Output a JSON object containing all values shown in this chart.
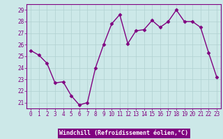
{
  "x": [
    0,
    1,
    2,
    3,
    4,
    5,
    6,
    7,
    8,
    9,
    10,
    11,
    12,
    13,
    14,
    15,
    16,
    17,
    18,
    19,
    20,
    21,
    22,
    23
  ],
  "y": [
    25.5,
    25.1,
    24.4,
    22.7,
    22.8,
    21.6,
    20.8,
    21.0,
    24.0,
    26.0,
    27.8,
    28.6,
    26.1,
    27.2,
    27.3,
    28.1,
    27.5,
    28.0,
    29.0,
    28.0,
    28.0,
    27.5,
    25.3,
    23.2
  ],
  "line_color": "#800080",
  "marker": "D",
  "marker_size": 2.5,
  "bg_color": "#cce8e8",
  "grid_color": "#b0d0d0",
  "xlabel": "Windchill (Refroidissement éolien,°C)",
  "xlabel_bg": "#800080",
  "xlabel_text_color": "#ffffff",
  "ylim": [
    20.5,
    29.5
  ],
  "yticks": [
    21,
    22,
    23,
    24,
    25,
    26,
    27,
    28,
    29
  ],
  "xticks": [
    0,
    1,
    2,
    3,
    4,
    5,
    6,
    7,
    8,
    9,
    10,
    11,
    12,
    13,
    14,
    15,
    16,
    17,
    18,
    19,
    20,
    21,
    22,
    23
  ],
  "tick_label_fontsize": 5.5,
  "tick_color": "#800080",
  "line_width": 1.0,
  "spine_color": "#800080"
}
